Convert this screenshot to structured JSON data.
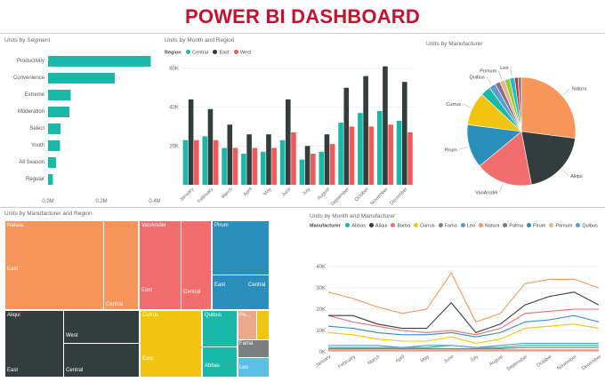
{
  "page_title": "POWER BI DASHBOARD",
  "segment_chart": {
    "title": "Units by Segment",
    "categories": [
      "Productivity",
      "Convenience",
      "Extreme",
      "Moderation",
      "Select",
      "Youth",
      "All Season",
      "Regular"
    ],
    "ticks": [
      "0.0M",
      "0.2M",
      "0.4M"
    ],
    "color": "#1ab8a6"
  },
  "region_chart": {
    "title": "Units by Month and Region",
    "legend_label": "Region",
    "ticks": [
      "20K",
      "40K",
      "60K"
    ],
    "colors": {
      "Central": "#1ab8a6",
      "East": "#333d3d",
      "West": "#f05a5a"
    }
  },
  "manufacturer_pie": {
    "title": "Units by Manufacturer",
    "labels": {
      "natura": "Natura",
      "aliqui": "Aliqui",
      "vanarsdel": "VanArsdel",
      "pirum": "Pirum",
      "currus": "Currus",
      "quibus": "Quibus",
      "pomum": "Pomum",
      "leo": "Leo"
    }
  },
  "treemap": {
    "title": "Units by Manufacturer and Region",
    "tiles": {
      "natura": {
        "label": "Natura",
        "regions": [
          "East",
          "Central"
        ]
      },
      "vanarsdel": {
        "label": "VanArsdel",
        "regions": [
          "East",
          "Central"
        ]
      },
      "pirum": {
        "label": "Pirum",
        "regions": [
          "East",
          "Central"
        ]
      },
      "aliqui": {
        "label": "Aliqui",
        "regions": [
          "West",
          "East",
          "Central"
        ]
      },
      "currus": {
        "label": "Currus",
        "regions": [
          "East"
        ]
      },
      "quibus": {
        "label": "Quibus",
        "regions": []
      },
      "po": {
        "label": "Po..."
      },
      "fama": {
        "label": "Fama"
      },
      "abbas": {
        "label": "Abbas"
      },
      "leo": {
        "label": "Leo"
      }
    }
  },
  "manufacturer_line": {
    "title": "Units by Month and Manufacturer",
    "legend_label": "Manufacturer",
    "ticks": [
      "0K",
      "10K",
      "20K",
      "30K",
      "40K"
    ]
  },
  "chart_data": [
    {
      "type": "bar",
      "title": "Units by Segment",
      "orientation": "horizontal",
      "categories": [
        "Productivity",
        "Convenience",
        "Extreme",
        "Moderation",
        "Select",
        "Youth",
        "All Season",
        "Regular"
      ],
      "values": [
        0.385,
        0.25,
        0.085,
        0.08,
        0.047,
        0.045,
        0.03,
        0.018
      ],
      "xlim": [
        0,
        0.4
      ],
      "unit": "M"
    },
    {
      "type": "bar",
      "title": "Units by Month and Region",
      "categories": [
        "January",
        "February",
        "March",
        "April",
        "May",
        "June",
        "July",
        "August",
        "September",
        "October",
        "November",
        "December"
      ],
      "series": [
        {
          "name": "Central",
          "values": [
            23,
            25,
            19,
            16,
            17,
            23,
            13,
            17,
            32,
            37,
            38,
            33
          ]
        },
        {
          "name": "East",
          "values": [
            44,
            39,
            31,
            26,
            26,
            44,
            20,
            26,
            50,
            56,
            61,
            53
          ]
        },
        {
          "name": "West",
          "values": [
            23,
            23,
            19,
            19,
            19,
            27,
            16,
            21,
            30,
            30,
            31,
            27
          ]
        }
      ],
      "ylim": [
        0,
        65
      ],
      "unit": "K"
    },
    {
      "type": "pie",
      "title": "Units by Manufacturer",
      "slices": [
        {
          "name": "Natura",
          "value": 27,
          "color": "#f8955a"
        },
        {
          "name": "Aliqui",
          "value": 20,
          "color": "#333d3d"
        },
        {
          "name": "VanArsdel",
          "value": 17,
          "color": "#f26d6d"
        },
        {
          "name": "Pirum",
          "value": 13,
          "color": "#2b8fbe"
        },
        {
          "name": "Currus",
          "value": 10,
          "color": "#f1c40f"
        },
        {
          "name": "",
          "value": 3,
          "color": "#1ab8a6"
        },
        {
          "name": "Quibus",
          "value": 2,
          "color": "#5a9bd5"
        },
        {
          "name": "",
          "value": 1.5,
          "color": "#8e6c8a"
        },
        {
          "name": "Pomum",
          "value": 1.5,
          "color": "#e0b98a"
        },
        {
          "name": "",
          "value": 1.5,
          "color": "#99cc33"
        },
        {
          "name": "Leo",
          "value": 1.5,
          "color": "#17becf"
        },
        {
          "name": "",
          "value": 1,
          "color": "#d62728"
        },
        {
          "name": "",
          "value": 1,
          "color": "#7f7f7f"
        }
      ]
    },
    {
      "type": "treemap",
      "title": "Units by Manufacturer and Region",
      "groups": [
        "Natura",
        "VanArsdel",
        "Pirum",
        "Aliqui",
        "Currus",
        "Quibus",
        "Po...",
        "Fama",
        "Abbas",
        "Leo"
      ]
    },
    {
      "type": "line",
      "title": "Units by Month and Manufacturer",
      "x": [
        "January",
        "February",
        "March",
        "April",
        "May",
        "June",
        "July",
        "August",
        "September",
        "October",
        "November",
        "December"
      ],
      "ylim": [
        0,
        40
      ],
      "unit": "K",
      "series": [
        {
          "name": "Natura",
          "color": "#f8955a",
          "values": [
            28,
            25,
            21,
            18,
            20,
            37,
            14,
            18,
            32,
            34,
            34,
            30
          ]
        },
        {
          "name": "Aliqui",
          "color": "#333d3d",
          "values": [
            17,
            17,
            13,
            11,
            11,
            23,
            9,
            13,
            22,
            26,
            28,
            22
          ]
        },
        {
          "name": "VanArsdel",
          "color": "#f26d6d",
          "values": [
            17,
            14,
            12,
            10,
            9,
            10,
            8,
            11,
            18,
            19,
            20,
            20
          ]
        },
        {
          "name": "Pirum",
          "color": "#2b8fbe",
          "values": [
            12,
            11,
            9,
            8,
            8,
            9,
            7,
            9,
            14,
            15,
            17,
            14
          ]
        },
        {
          "name": "Currus",
          "color": "#f1c40f",
          "values": [
            9,
            8,
            6,
            5,
            5,
            7,
            4,
            6,
            11,
            12,
            13,
            11
          ]
        },
        {
          "name": "Leo",
          "color": "#5a9bd5",
          "values": [
            3,
            3,
            3,
            2,
            3,
            3,
            2,
            3,
            4,
            4,
            4,
            4
          ]
        },
        {
          "name": "Abbas",
          "color": "#1ab8a6",
          "values": [
            2,
            2,
            2,
            2,
            2,
            3,
            2,
            2,
            3,
            3,
            3,
            3
          ]
        },
        {
          "name": "Fama",
          "color": "#7a8080",
          "values": [
            1.5,
            1.5,
            1.5,
            1.5,
            1.5,
            1.5,
            1.5,
            1.5,
            2,
            2,
            2,
            2
          ]
        },
        {
          "name": "Pomum",
          "color": "#e0b98a",
          "values": [
            1,
            1,
            1,
            1,
            1,
            1,
            1,
            1,
            1,
            1,
            1,
            1
          ]
        },
        {
          "name": "Barba",
          "color": "#f26d6d",
          "values": [
            0.5,
            0.5,
            0.5,
            0.5,
            0.5,
            0.5,
            0.5,
            0.5,
            0.5,
            0.5,
            0.5,
            0.5
          ]
        }
      ],
      "legend": [
        "Abbas",
        "Aliqui",
        "Barba",
        "Currus",
        "Fama",
        "Leo",
        "Natura",
        "Palma",
        "Pirum",
        "Pomum",
        "Quibus"
      ]
    }
  ]
}
